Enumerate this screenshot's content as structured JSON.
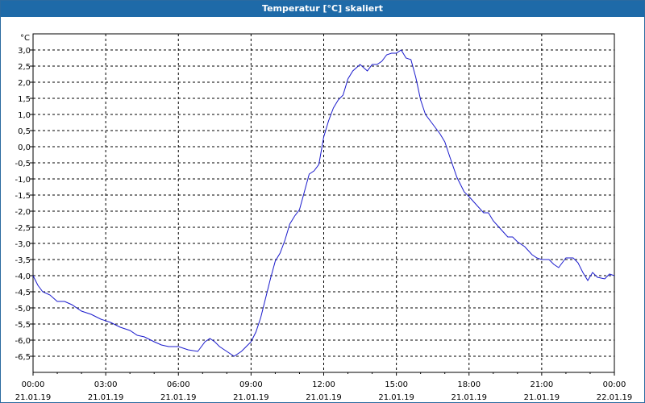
{
  "window": {
    "title": "Temperatur [°C] skaliert"
  },
  "chart_data": {
    "type": "line",
    "title": "Temperatur [°C] skaliert",
    "ylabel": "°C",
    "xlabel": "",
    "ylim": [
      -6.8,
      3.4
    ],
    "grid": true,
    "line_color": "#1a1acc",
    "y_ticks": [
      "3,0",
      "2,5",
      "2,0",
      "1,5",
      "1,0",
      "0,5",
      "0,0",
      "-0,5",
      "-1,0",
      "-1,5",
      "-2,0",
      "-2,5",
      "-3,0",
      "-3,5",
      "-4,0",
      "-4,5",
      "-5,0",
      "-5,5",
      "-6,0",
      "-6,5"
    ],
    "y_tick_values": [
      3.0,
      2.5,
      2.0,
      1.5,
      1.0,
      0.5,
      0.0,
      -0.5,
      -1.0,
      -1.5,
      -2.0,
      -2.5,
      -3.0,
      -3.5,
      -4.0,
      -4.5,
      -5.0,
      -5.5,
      -6.0,
      -6.5
    ],
    "x_ticks": [
      {
        "time": "00:00",
        "date": "21.01.19"
      },
      {
        "time": "03:00",
        "date": "21.01.19"
      },
      {
        "time": "06:00",
        "date": "21.01.19"
      },
      {
        "time": "09:00",
        "date": "21.01.19"
      },
      {
        "time": "12:00",
        "date": "21.01.19"
      },
      {
        "time": "15:00",
        "date": "21.01.19"
      },
      {
        "time": "18:00",
        "date": "21.01.19"
      },
      {
        "time": "21:00",
        "date": "21.01.19"
      },
      {
        "time": "00:00",
        "date": "22.01.19"
      }
    ],
    "x_tick_hours": [
      0,
      3,
      6,
      9,
      12,
      15,
      18,
      21,
      24
    ],
    "series": [
      {
        "x_hours": [
          0,
          0.2,
          0.4,
          0.7,
          1.0,
          1.3,
          1.6,
          2.0,
          2.4,
          2.8,
          3.2,
          3.6,
          4.0,
          4.3,
          4.6,
          5.0,
          5.3,
          5.6,
          6.0,
          6.4,
          6.8,
          7.0,
          7.1,
          7.3,
          7.5,
          7.7,
          8.0,
          8.3,
          8.6,
          8.8,
          9.0,
          9.2,
          9.4,
          9.6,
          9.8,
          10.0,
          10.2,
          10.4,
          10.6,
          10.8,
          11.0,
          11.2,
          11.4,
          11.6,
          11.8,
          12.0,
          12.2,
          12.4,
          12.6,
          12.8,
          13.0,
          13.2,
          13.5,
          13.8,
          14.0,
          14.2,
          14.4,
          14.6,
          14.8,
          15.0,
          15.2,
          15.4,
          15.6,
          15.8,
          16.0,
          16.2,
          16.4,
          16.6,
          16.8,
          17.0,
          17.2,
          17.5,
          17.8,
          18.0,
          18.3,
          18.6,
          18.8,
          19.0,
          19.3,
          19.6,
          19.8,
          20.0,
          20.3,
          20.6,
          20.8,
          21.0,
          21.3,
          21.5,
          21.7,
          22.0,
          22.3,
          22.5,
          22.7,
          22.9,
          23.1,
          23.3,
          23.6,
          23.8,
          24.0
        ],
        "values": [
          -4.0,
          -4.3,
          -4.5,
          -4.6,
          -4.8,
          -4.8,
          -4.9,
          -5.1,
          -5.2,
          -5.35,
          -5.45,
          -5.6,
          -5.7,
          -5.85,
          -5.9,
          -6.05,
          -6.15,
          -6.2,
          -6.2,
          -6.3,
          -6.35,
          -6.15,
          -6.05,
          -5.95,
          -6.05,
          -6.2,
          -6.35,
          -6.5,
          -6.35,
          -6.2,
          -6.05,
          -5.75,
          -5.3,
          -4.7,
          -4.1,
          -3.55,
          -3.3,
          -2.9,
          -2.4,
          -2.15,
          -1.95,
          -1.4,
          -0.85,
          -0.75,
          -0.55,
          0.3,
          0.8,
          1.2,
          1.45,
          1.6,
          2.1,
          2.35,
          2.55,
          2.35,
          2.55,
          2.55,
          2.65,
          2.85,
          2.9,
          2.9,
          3.0,
          2.75,
          2.7,
          2.15,
          1.45,
          1.0,
          0.8,
          0.6,
          0.4,
          0.15,
          -0.3,
          -0.95,
          -1.4,
          -1.55,
          -1.8,
          -2.05,
          -2.05,
          -2.3,
          -2.55,
          -2.8,
          -2.8,
          -2.95,
          -3.1,
          -3.35,
          -3.45,
          -3.5,
          -3.5,
          -3.65,
          -3.75,
          -3.45,
          -3.45,
          -3.6,
          -3.9,
          -4.15,
          -3.9,
          -4.05,
          -4.1,
          -3.95,
          -4.0
        ]
      }
    ]
  }
}
